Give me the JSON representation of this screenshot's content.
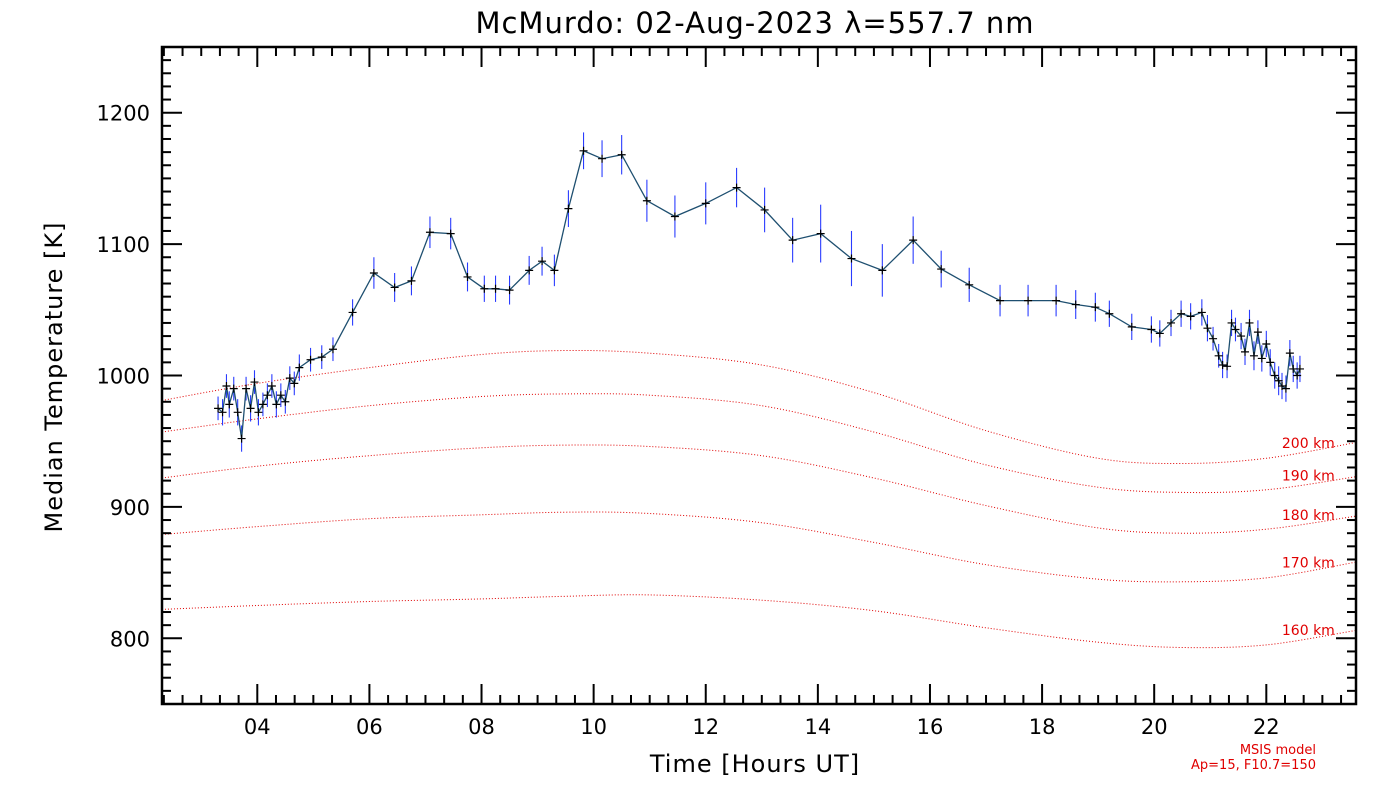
{
  "chart_data": {
    "type": "line",
    "title": "McMurdo: 02-Aug-2023 λ=557.7 nm",
    "xlabel": "Time [Hours UT]",
    "ylabel": "Median Temperature [K]",
    "xlim": [
      2.3,
      23.6
    ],
    "ylim": [
      750,
      1250
    ],
    "xticks": [
      4,
      6,
      8,
      10,
      12,
      14,
      16,
      18,
      20,
      22
    ],
    "xtick_labels": [
      "04",
      "06",
      "08",
      "10",
      "12",
      "14",
      "16",
      "18",
      "20",
      "22"
    ],
    "yticks": [
      800,
      900,
      1000,
      1100,
      1200
    ],
    "ytick_labels": [
      "800",
      "900",
      "1000",
      "1100",
      "1200"
    ],
    "grid": false,
    "annotations": [
      "MSIS model",
      "Ap=15, F10.7=150"
    ],
    "colors": {
      "measured_line": "#1e4f70",
      "error_bars": "#2a3cff",
      "markers": "#000000",
      "model": "#e00000",
      "axes": "#000000"
    },
    "series": [
      {
        "kind": "measured",
        "style": "line-with-plus-markers-and-error-bars",
        "x": [
          3.3,
          3.38,
          3.45,
          3.5,
          3.58,
          3.65,
          3.72,
          3.8,
          3.88,
          3.95,
          4.02,
          4.1,
          4.18,
          4.26,
          4.34,
          4.42,
          4.5,
          4.58,
          4.66,
          4.75,
          4.95,
          5.15,
          5.35,
          5.7,
          6.08,
          6.45,
          6.75,
          7.08,
          7.45,
          7.75,
          8.05,
          8.25,
          8.5,
          8.85,
          9.08,
          9.3,
          9.55,
          9.82,
          10.15,
          10.5,
          10.95,
          11.45,
          12.0,
          12.55,
          13.05,
          13.55,
          14.05,
          14.6,
          15.15,
          15.7,
          16.2,
          16.7,
          17.25,
          17.75,
          18.25,
          18.6,
          18.95,
          19.2,
          19.6,
          19.95,
          20.1,
          20.3,
          20.48,
          20.65,
          20.85,
          20.95,
          21.05,
          21.15,
          21.22,
          21.3,
          21.38,
          21.45,
          21.55,
          21.62,
          21.7,
          21.78,
          21.85,
          21.92,
          22.0,
          22.07,
          22.15,
          22.22,
          22.28,
          22.35,
          22.42,
          22.48,
          22.55,
          22.6
        ],
        "y": [
          975,
          972,
          992,
          978,
          990,
          972,
          952,
          990,
          975,
          995,
          972,
          978,
          985,
          992,
          978,
          985,
          980,
          998,
          994,
          1006,
          1012,
          1014,
          1020,
          1048,
          1078,
          1067,
          1072,
          1109,
          1108,
          1075,
          1066,
          1066,
          1065,
          1080,
          1087,
          1080,
          1127,
          1171,
          1165,
          1168,
          1133,
          1121,
          1131,
          1143,
          1126,
          1103,
          1108,
          1089,
          1080,
          1103,
          1081,
          1069,
          1057,
          1057,
          1057,
          1054,
          1052,
          1047,
          1037,
          1035,
          1032,
          1040,
          1047,
          1045,
          1048,
          1036,
          1028,
          1015,
          1008,
          1007,
          1040,
          1035,
          1030,
          1018,
          1040,
          1015,
          1033,
          1013,
          1024,
          1010,
          1000,
          996,
          992,
          990,
          1017,
          1005,
          1000,
          1005
        ],
        "error": [
          9,
          10,
          9,
          10,
          9,
          10,
          10,
          9,
          10,
          9,
          10,
          9,
          9,
          9,
          10,
          9,
          9,
          9,
          9,
          10,
          9,
          9,
          9,
          10,
          12,
          11,
          11,
          12,
          12,
          11,
          10,
          10,
          11,
          11,
          11,
          12,
          14,
          14,
          14,
          15,
          16,
          16,
          16,
          15,
          17,
          17,
          22,
          21,
          20,
          18,
          14,
          13,
          12,
          12,
          12,
          11,
          11,
          10,
          10,
          10,
          10,
          10,
          10,
          10,
          10,
          10,
          9,
          9,
          10,
          9,
          10,
          9,
          10,
          10,
          10,
          11,
          9,
          10,
          10,
          10,
          10,
          11,
          10,
          10,
          10,
          10,
          10,
          10
        ]
      },
      {
        "name": "160 km",
        "kind": "model",
        "style": "dotted",
        "x": [
          2.3,
          4,
          6,
          8,
          9.5,
          11,
          13,
          15,
          17,
          19,
          20.5,
          22,
          23.6
        ],
        "y": [
          822,
          825,
          828,
          830,
          832,
          833,
          829,
          821,
          808,
          797,
          793,
          795,
          806
        ]
      },
      {
        "name": "170 km",
        "kind": "model",
        "style": "dotted",
        "x": [
          2.3,
          4,
          6,
          8,
          9.5,
          11,
          13,
          15,
          17,
          19,
          20.5,
          22,
          23.6
        ],
        "y": [
          879,
          885,
          891,
          894,
          896,
          895,
          888,
          873,
          856,
          845,
          843,
          846,
          858
        ]
      },
      {
        "name": "180 km",
        "kind": "model",
        "style": "dotted",
        "x": [
          2.3,
          4,
          6,
          8,
          9.5,
          11,
          13,
          15,
          17,
          19,
          20.5,
          22,
          23.6
        ],
        "y": [
          922,
          931,
          939,
          945,
          947,
          946,
          939,
          922,
          901,
          884,
          880,
          883,
          893
        ]
      },
      {
        "name": "190 km",
        "kind": "model",
        "style": "dotted",
        "x": [
          2.3,
          4,
          6,
          8,
          9.5,
          11,
          13,
          15,
          17,
          19,
          20.5,
          22,
          23.6
        ],
        "y": [
          957,
          967,
          977,
          984,
          986,
          985,
          977,
          957,
          932,
          915,
          911,
          913,
          923
        ]
      },
      {
        "name": "200 km",
        "kind": "model",
        "style": "dotted",
        "x": [
          2.3,
          4,
          6,
          8,
          9.5,
          11,
          13,
          15,
          17,
          19,
          20.5,
          22,
          23.6
        ],
        "y": [
          981,
          994,
          1006,
          1016,
          1019,
          1017,
          1008,
          987,
          958,
          937,
          933,
          937,
          949
        ]
      }
    ]
  }
}
